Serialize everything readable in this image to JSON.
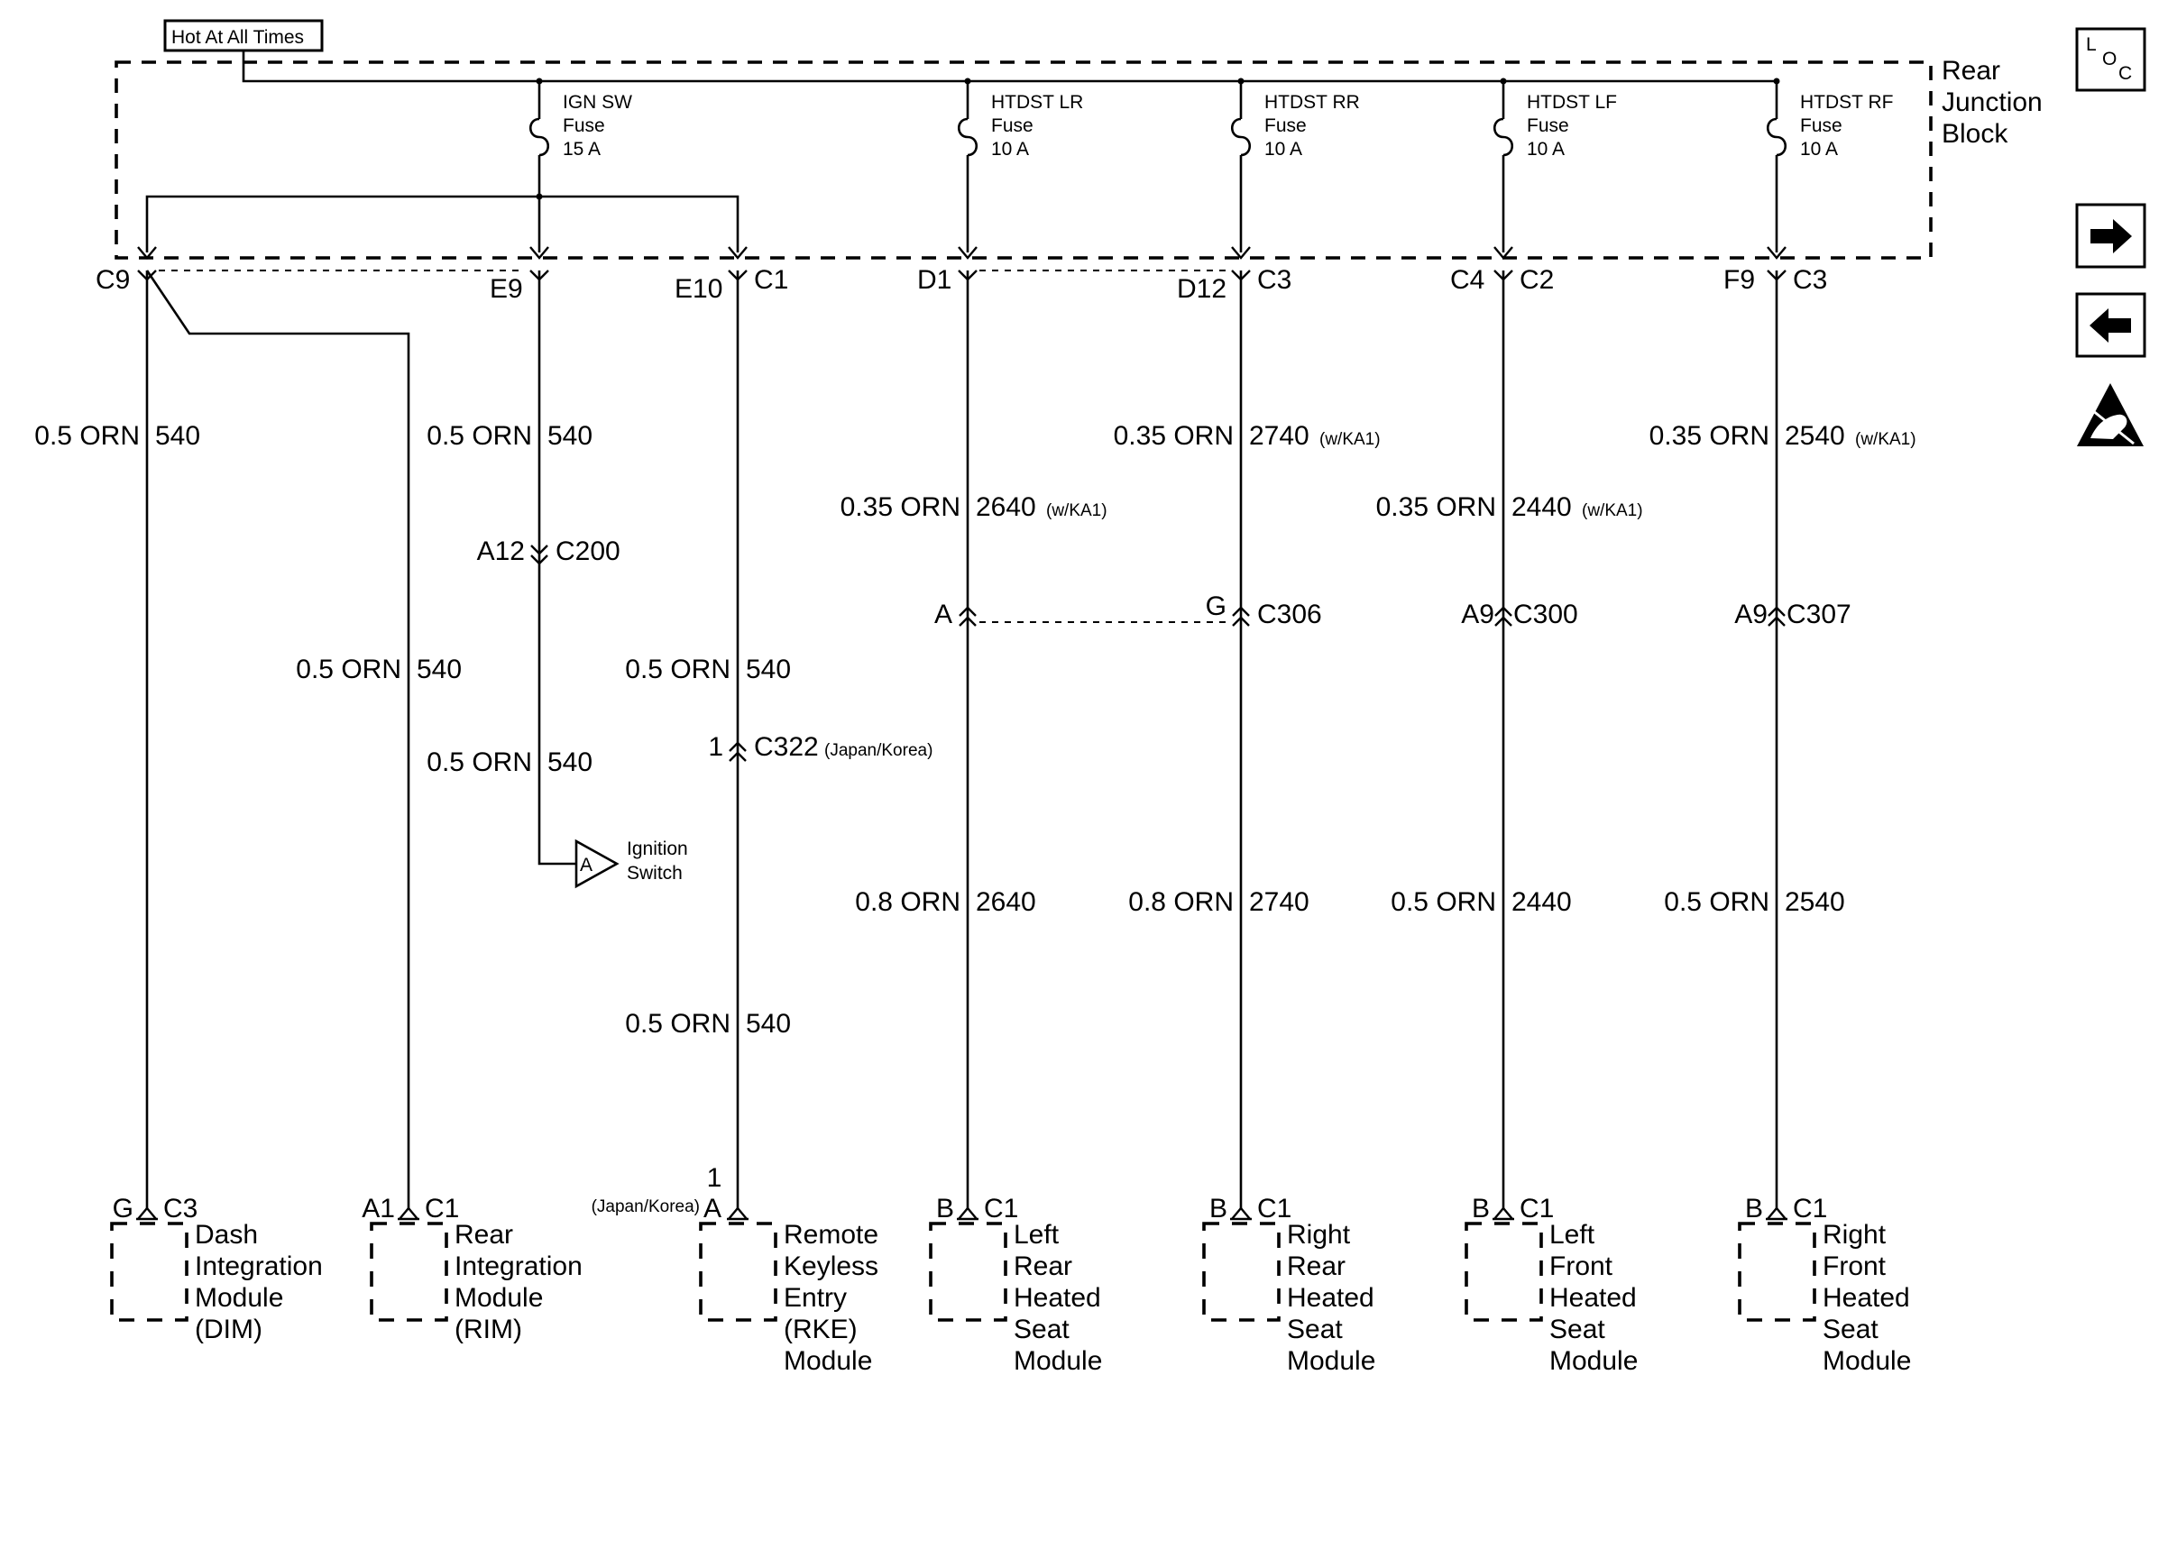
{
  "supply": {
    "hot_label": "Hot At All Times",
    "block_label": [
      "Rear",
      "Junction",
      "Block"
    ]
  },
  "fuses": [
    {
      "name": "IGN SW",
      "word": "Fuse",
      "rating": "15 A"
    },
    {
      "name": "HTDST LR",
      "word": "Fuse",
      "rating": "10 A"
    },
    {
      "name": "HTDST RR",
      "word": "Fuse",
      "rating": "10 A"
    },
    {
      "name": "HTDST LF",
      "word": "Fuse",
      "rating": "10 A"
    },
    {
      "name": "HTDST RF",
      "word": "Fuse",
      "rating": "10 A"
    }
  ],
  "block_terminals": [
    {
      "pin": "C9",
      "conn": ""
    },
    {
      "pin": "E9",
      "conn": ""
    },
    {
      "pin": "E10",
      "conn": "C1"
    },
    {
      "pin": "D1",
      "conn": ""
    },
    {
      "pin": "D12",
      "conn": "C3"
    },
    {
      "pin": "C4",
      "conn": "C2"
    },
    {
      "pin": "F9",
      "conn": "C3"
    }
  ],
  "wire_labels": [
    {
      "size": "0.5 ORN",
      "circuit": "540",
      "note": ""
    },
    {
      "size": "0.5 ORN",
      "circuit": "540",
      "note": ""
    },
    {
      "size": "0.5 ORN",
      "circuit": "540",
      "note": ""
    },
    {
      "size": "0.5 ORN",
      "circuit": "540",
      "note": ""
    },
    {
      "size": "0.5 ORN",
      "circuit": "540",
      "note": ""
    },
    {
      "size": "0.5 ORN",
      "circuit": "540",
      "note": ""
    },
    {
      "size": "0.35 ORN",
      "circuit": "2640",
      "note": "(w/KA1)"
    },
    {
      "size": "0.8 ORN",
      "circuit": "2640",
      "note": ""
    },
    {
      "size": "0.35 ORN",
      "circuit": "2740",
      "note": "(w/KA1)"
    },
    {
      "size": "0.8 ORN",
      "circuit": "2740",
      "note": ""
    },
    {
      "size": "0.35 ORN",
      "circuit": "2440",
      "note": "(w/KA1)"
    },
    {
      "size": "0.5 ORN",
      "circuit": "2440",
      "note": ""
    },
    {
      "size": "0.35 ORN",
      "circuit": "2540",
      "note": "(w/KA1)"
    },
    {
      "size": "0.5 ORN",
      "circuit": "2540",
      "note": ""
    }
  ],
  "inline_connectors": [
    {
      "pin": "A12",
      "conn": "C200",
      "note": ""
    },
    {
      "pin": "1",
      "conn": "C322",
      "note": "(Japan/Korea)"
    },
    {
      "pin": "A",
      "conn": "",
      "note": ""
    },
    {
      "pin": "G",
      "conn": "C306",
      "note": ""
    },
    {
      "pin": "A9",
      "conn": "C300",
      "note": ""
    },
    {
      "pin": "A9",
      "conn": "C307",
      "note": ""
    }
  ],
  "ignition_switch": {
    "letter": "A",
    "label": [
      "Ignition",
      "Switch"
    ]
  },
  "modules": [
    {
      "pin": "G",
      "conn": "C3",
      "pre": [
        "",
        ""
      ],
      "name": [
        "Dash",
        "Integration",
        "Module",
        "(DIM)"
      ]
    },
    {
      "pin": "A1",
      "conn": "C1",
      "pre": [
        "",
        ""
      ],
      "name": [
        "Rear",
        "Integration",
        "Module",
        "(RIM)"
      ]
    },
    {
      "pin": "A",
      "conn": "",
      "pre": [
        "1",
        "(Japan/Korea)"
      ],
      "name": [
        "Remote",
        "Keyless",
        "Entry",
        "(RKE)",
        "Module"
      ]
    },
    {
      "pin": "B",
      "conn": "C1",
      "pre": [
        "",
        ""
      ],
      "name": [
        "Left",
        "Rear",
        "Heated",
        "Seat",
        "Module"
      ]
    },
    {
      "pin": "B",
      "conn": "C1",
      "pre": [
        "",
        ""
      ],
      "name": [
        "Right",
        "Rear",
        "Heated",
        "Seat",
        "Module"
      ]
    },
    {
      "pin": "B",
      "conn": "C1",
      "pre": [
        "",
        ""
      ],
      "name": [
        "Left",
        "Front",
        "Heated",
        "Seat",
        "Module"
      ]
    },
    {
      "pin": "B",
      "conn": "C1",
      "pre": [
        "",
        ""
      ],
      "name": [
        "Right",
        "Front",
        "Heated",
        "Seat",
        "Module"
      ]
    }
  ],
  "sidebar": {
    "loc": [
      "L",
      "O",
      "C"
    ],
    "icons": [
      "next-arrow-icon",
      "previous-arrow-icon",
      "esd-warning-icon"
    ]
  }
}
